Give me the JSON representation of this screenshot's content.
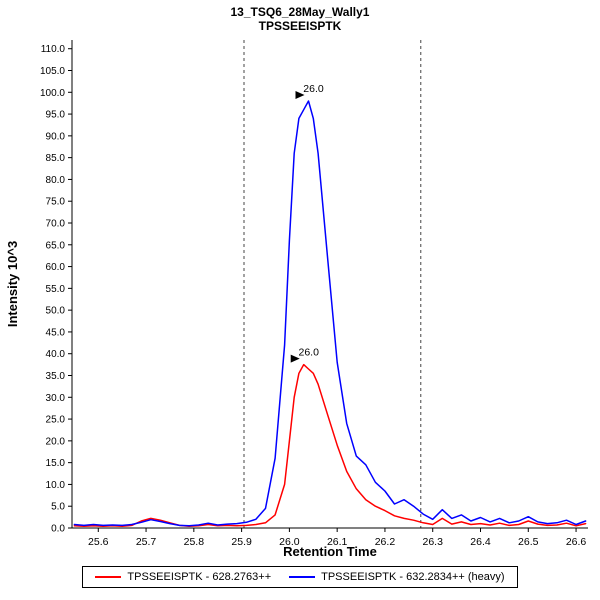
{
  "chart_data": {
    "type": "line",
    "title": "13_TSQ6_28May_Wally1",
    "subtitle": "TPSSEEISPTK",
    "xlabel": "Retention Time",
    "ylabel": "Intensity 10^3",
    "xlim": [
      25.545,
      26.625
    ],
    "ylim": [
      0,
      112
    ],
    "grid": false,
    "legend_position": "bottom",
    "x_ticks": [
      25.6,
      25.7,
      25.8,
      25.9,
      26.0,
      26.1,
      26.2,
      26.3,
      26.4,
      26.5,
      26.6
    ],
    "x_tick_labels": [
      "25.6",
      "25.7",
      "25.8",
      "25.9",
      "26.0",
      "26.1",
      "26.2",
      "26.3",
      "26.4",
      "26.5",
      "26.6"
    ],
    "y_ticks": [
      0,
      5,
      10,
      15,
      20,
      25,
      30,
      35,
      40,
      45,
      50,
      55,
      60,
      65,
      70,
      75,
      80,
      85,
      90,
      95,
      100,
      105,
      110
    ],
    "y_tick_labels": [
      "0.0",
      "5.0",
      "10.0",
      "15.0",
      "20.0",
      "25.0",
      "30.0",
      "35.0",
      "40.0",
      "45.0",
      "50.0",
      "55.0",
      "60.0",
      "65.0",
      "70.0",
      "75.0",
      "80.0",
      "85.0",
      "90.0",
      "95.0",
      "100.0",
      "105.0",
      "110.0"
    ],
    "integration_boundaries": [
      25.905,
      26.275
    ],
    "series": [
      {
        "name": "TPSSEEISPTK - 628.2763++",
        "color": "#ff0000",
        "points": [
          [
            25.55,
            0.5
          ],
          [
            25.57,
            0.4
          ],
          [
            25.59,
            0.5
          ],
          [
            25.61,
            0.4
          ],
          [
            25.63,
            0.5
          ],
          [
            25.65,
            0.4
          ],
          [
            25.67,
            0.6
          ],
          [
            25.69,
            1.6
          ],
          [
            25.71,
            2.2
          ],
          [
            25.73,
            1.8
          ],
          [
            25.75,
            1.2
          ],
          [
            25.77,
            0.6
          ],
          [
            25.79,
            0.4
          ],
          [
            25.81,
            0.5
          ],
          [
            25.83,
            0.8
          ],
          [
            25.85,
            0.5
          ],
          [
            25.87,
            0.6
          ],
          [
            25.89,
            0.5
          ],
          [
            25.91,
            0.6
          ],
          [
            25.93,
            0.8
          ],
          [
            25.95,
            1.2
          ],
          [
            25.97,
            3.0
          ],
          [
            25.99,
            10.0
          ],
          [
            26.0,
            20.0
          ],
          [
            26.01,
            30.0
          ],
          [
            26.02,
            35.5
          ],
          [
            26.03,
            37.5
          ],
          [
            26.04,
            36.5
          ],
          [
            26.05,
            35.5
          ],
          [
            26.06,
            33.0
          ],
          [
            26.08,
            26.0
          ],
          [
            26.1,
            19.0
          ],
          [
            26.12,
            13.0
          ],
          [
            26.14,
            9.0
          ],
          [
            26.16,
            6.5
          ],
          [
            26.18,
            5.0
          ],
          [
            26.2,
            4.0
          ],
          [
            26.22,
            2.8
          ],
          [
            26.24,
            2.2
          ],
          [
            26.26,
            1.8
          ],
          [
            26.28,
            1.2
          ],
          [
            26.3,
            0.8
          ],
          [
            26.32,
            2.2
          ],
          [
            26.34,
            0.9
          ],
          [
            26.36,
            1.4
          ],
          [
            26.38,
            0.8
          ],
          [
            26.4,
            1.0
          ],
          [
            26.42,
            0.7
          ],
          [
            26.44,
            1.1
          ],
          [
            26.46,
            0.6
          ],
          [
            26.48,
            0.8
          ],
          [
            26.5,
            1.6
          ],
          [
            26.52,
            0.9
          ],
          [
            26.54,
            0.6
          ],
          [
            26.56,
            0.7
          ],
          [
            26.58,
            1.1
          ],
          [
            26.6,
            0.5
          ],
          [
            26.62,
            1.0
          ]
        ]
      },
      {
        "name": "TPSSEEISPTK - 632.2834++ (heavy)",
        "color": "#0000ff",
        "points": [
          [
            25.55,
            0.8
          ],
          [
            25.57,
            0.6
          ],
          [
            25.59,
            0.8
          ],
          [
            25.61,
            0.6
          ],
          [
            25.63,
            0.7
          ],
          [
            25.65,
            0.6
          ],
          [
            25.67,
            0.8
          ],
          [
            25.69,
            1.3
          ],
          [
            25.71,
            1.9
          ],
          [
            25.73,
            1.5
          ],
          [
            25.75,
            1.0
          ],
          [
            25.77,
            0.6
          ],
          [
            25.79,
            0.5
          ],
          [
            25.81,
            0.7
          ],
          [
            25.83,
            1.1
          ],
          [
            25.85,
            0.7
          ],
          [
            25.87,
            0.9
          ],
          [
            25.89,
            1.0
          ],
          [
            25.91,
            1.3
          ],
          [
            25.93,
            2.0
          ],
          [
            25.95,
            4.5
          ],
          [
            25.97,
            16.0
          ],
          [
            25.99,
            42.0
          ],
          [
            26.0,
            66.0
          ],
          [
            26.01,
            86.0
          ],
          [
            26.02,
            94.0
          ],
          [
            26.03,
            96.0
          ],
          [
            26.04,
            98.0
          ],
          [
            26.05,
            94.0
          ],
          [
            26.06,
            86.0
          ],
          [
            26.08,
            62.0
          ],
          [
            26.1,
            38.0
          ],
          [
            26.12,
            24.0
          ],
          [
            26.14,
            16.5
          ],
          [
            26.16,
            14.5
          ],
          [
            26.18,
            10.5
          ],
          [
            26.2,
            8.5
          ],
          [
            26.22,
            5.5
          ],
          [
            26.24,
            6.5
          ],
          [
            26.26,
            5.0
          ],
          [
            26.28,
            3.2
          ],
          [
            26.3,
            2.0
          ],
          [
            26.32,
            4.2
          ],
          [
            26.34,
            2.2
          ],
          [
            26.36,
            3.0
          ],
          [
            26.38,
            1.6
          ],
          [
            26.4,
            2.4
          ],
          [
            26.42,
            1.4
          ],
          [
            26.44,
            2.2
          ],
          [
            26.46,
            1.2
          ],
          [
            26.48,
            1.6
          ],
          [
            26.5,
            2.6
          ],
          [
            26.52,
            1.4
          ],
          [
            26.54,
            1.0
          ],
          [
            26.56,
            1.2
          ],
          [
            26.58,
            1.8
          ],
          [
            26.6,
            0.8
          ],
          [
            26.62,
            1.6
          ]
        ]
      }
    ],
    "annotations": [
      {
        "label": "26.0",
        "x": 26.03,
        "y": 37.5,
        "color": "#ff0000"
      },
      {
        "label": "26.0",
        "x": 26.04,
        "y": 98.0,
        "color": "#0000ff"
      }
    ],
    "colors": {
      "axis": "#000000",
      "boundary_line": "#444444",
      "annotation_pointer": "#000000"
    }
  }
}
